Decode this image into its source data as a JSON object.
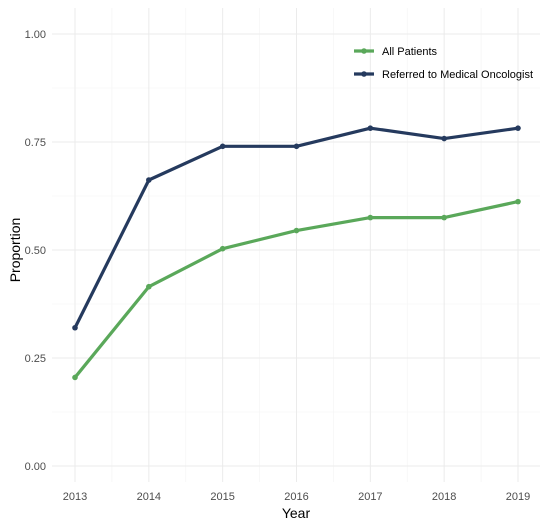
{
  "chart_data": {
    "type": "line",
    "title": "",
    "xlabel": "Year",
    "ylabel": "Proportion",
    "x": [
      2013,
      2014,
      2015,
      2016,
      2017,
      2018,
      2019
    ],
    "x_tick_labels": [
      "2013",
      "2014",
      "2015",
      "2016",
      "2017",
      "2018",
      "2019"
    ],
    "ylim": [
      0,
      1
    ],
    "y_ticks": [
      0,
      0.25,
      0.5,
      0.75,
      1.0
    ],
    "y_tick_labels": [
      "0.00",
      "0.25",
      "0.50",
      "0.75",
      "1.00"
    ],
    "grid": true,
    "legend_position": "top-right",
    "series": [
      {
        "name": "All Patients",
        "color": "#5aa85a",
        "values": [
          0.205,
          0.415,
          0.503,
          0.545,
          0.575,
          0.575,
          0.612
        ]
      },
      {
        "name": "Referred to Medical Oncologist",
        "color": "#253a5e",
        "values": [
          0.32,
          0.662,
          0.74,
          0.74,
          0.782,
          0.758,
          0.782
        ]
      }
    ]
  }
}
